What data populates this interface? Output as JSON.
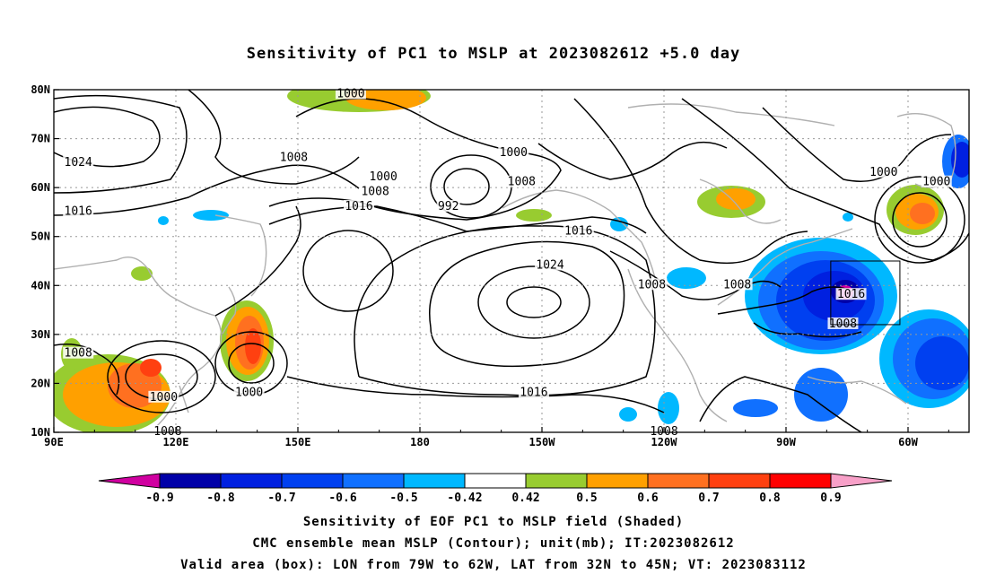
{
  "title": "Sensitivity of PC1 to MSLP at 2023082612 +5.0 day",
  "map": {
    "lon_ticks": [
      "90E",
      "120E",
      "150E",
      "180",
      "150W",
      "120W",
      "90W",
      "60W"
    ],
    "lat_ticks": [
      "80N",
      "70N",
      "60N",
      "50N",
      "40N",
      "30N",
      "20N",
      "10N"
    ],
    "valid_box": {
      "lon_from": "79W",
      "lon_to": "62W",
      "lat_from": "32N",
      "lat_to": "45N"
    },
    "contour_labels": [
      {
        "text": "1000",
        "lon": 163,
        "lat": 79
      },
      {
        "text": "1024",
        "lon": 96,
        "lat": 65
      },
      {
        "text": "1016",
        "lon": 96,
        "lat": 55
      },
      {
        "text": "1008",
        "lon": 149,
        "lat": 66
      },
      {
        "text": "1000",
        "lon": 171,
        "lat": 62
      },
      {
        "text": "1008",
        "lon": 169,
        "lat": 59
      },
      {
        "text": "1016",
        "lon": 165,
        "lat": 56
      },
      {
        "text": "992",
        "lon": 187,
        "lat": 56
      },
      {
        "text": "1000",
        "lon": 203,
        "lat": 67
      },
      {
        "text": "1008",
        "lon": 205,
        "lat": 61
      },
      {
        "text": "1016",
        "lon": 219,
        "lat": 51
      },
      {
        "text": "1024",
        "lon": 212,
        "lat": 44
      },
      {
        "text": "1008",
        "lon": 237,
        "lat": 40
      },
      {
        "text": "1008",
        "lon": 258,
        "lat": 40
      },
      {
        "text": "1016",
        "lon": 286,
        "lat": 38
      },
      {
        "text": "1008",
        "lon": 284,
        "lat": 32
      },
      {
        "text": "1000",
        "lon": 294,
        "lat": 63
      },
      {
        "text": "1000",
        "lon": 307,
        "lat": 61
      },
      {
        "text": "1008",
        "lon": 96,
        "lat": 26
      },
      {
        "text": "1000",
        "lon": 117,
        "lat": 17
      },
      {
        "text": "1000",
        "lon": 138,
        "lat": 18
      },
      {
        "text": "1016",
        "lon": 208,
        "lat": 18
      },
      {
        "text": "1008",
        "lon": 240,
        "lat": 10
      },
      {
        "text": "1008",
        "lon": 118,
        "lat": 10
      }
    ]
  },
  "colorbar": {
    "labels": [
      "-0.9",
      "-0.8",
      "-0.7",
      "-0.6",
      "-0.5",
      "-0.42",
      "0.42",
      "0.5",
      "0.6",
      "0.7",
      "0.8",
      "0.9"
    ],
    "colors": [
      "#0000a8",
      "#0020e0",
      "#0040f0",
      "#1070ff",
      "#00b8ff",
      "#ffffff",
      "#98cc30",
      "#ffa000",
      "#ff7020",
      "#ff4010",
      "#ff0000"
    ],
    "low_end_color": "#d000a0",
    "high_end_color": "#f8a0c8"
  },
  "captions": [
    "Sensitivity of EOF PC1 to MSLP field (Shaded)",
    "CMC ensemble mean MSLP (Contour); unit(mb); IT:2023082612",
    "Valid area (box): LON from 79W to 62W, LAT from 32N to 45N; VT: 2023083112"
  ]
}
